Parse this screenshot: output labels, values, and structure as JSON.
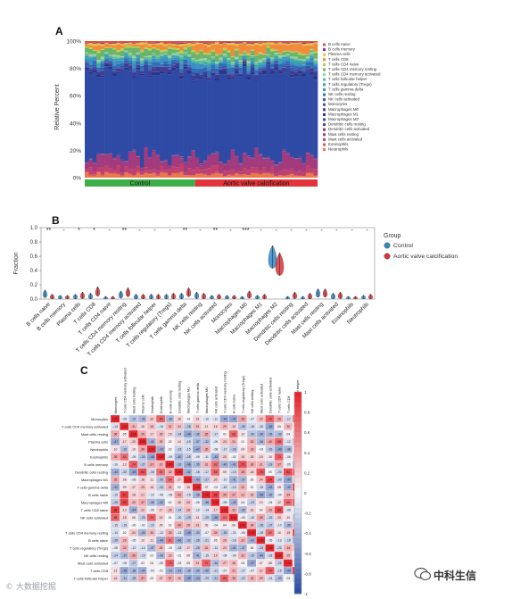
{
  "panels": {
    "a_label": "A",
    "b_label": "B",
    "c_label": "C"
  },
  "cell_types": [
    "B cells naive",
    "B cells memory",
    "Plasma cells",
    "T cells CD8",
    "T cells CD4 naive",
    "T cells CD4 memory resting",
    "T cells CD4 memory activated",
    "T cells follicular helper",
    "T cells regulatory (Tregs)",
    "T cells gamma delta",
    "NK cells resting",
    "NK cells activated",
    "Monocytes",
    "Macrophages M0",
    "Macrophages M1",
    "Macrophages M2",
    "Dendritic cells resting",
    "Dendritic cells activated",
    "Mast cells resting",
    "Mast cells activated",
    "Eosinophils",
    "Neutrophils"
  ],
  "colors": {
    "cell_types": [
      "#e2543b",
      "#8b2f8b",
      "#e8c43a",
      "#f08a3c",
      "#b7d04c",
      "#6cb36b",
      "#9ad0a4",
      "#5fbf9a",
      "#3aa6a6",
      "#3f8fc6",
      "#2c6fb8",
      "#2d5aa8",
      "#57479c",
      "#3a3f95",
      "#2b3388",
      "#2f4aa5",
      "#5a3f8f",
      "#7a3c8a",
      "#a23a7d",
      "#c0406e",
      "#d85b5b",
      "#ea7a4a"
    ],
    "control": "#2f87c8",
    "calcification": "#d8343a",
    "heat_high": "#e8242b",
    "heat_low": "#2d4fa5"
  },
  "panel_a": {
    "ylabel": "Relative Percent",
    "yticks": [
      "0%",
      "20%",
      "40%",
      "60%",
      "80%",
      "100%"
    ],
    "groups": [
      {
        "label": "Control",
        "n": 28,
        "color": "#3fae49"
      },
      {
        "label": "Aortic valve calcification",
        "n": 31,
        "color": "#e2343a"
      }
    ]
  },
  "panel_b": {
    "ylabel": "Fraction",
    "yticks": [
      "0.0",
      "0.2",
      "0.4",
      "0.6",
      "0.8",
      "1.0"
    ],
    "legend_title": "Group",
    "legend_items": [
      "Control",
      "Aortic valve calcification"
    ],
    "significance": [
      "**",
      "-",
      "*",
      "*",
      "-",
      "**",
      "-",
      "-",
      "-",
      "**",
      "-",
      "**",
      "-",
      "***",
      "-",
      "-",
      "-",
      "-",
      "-",
      "-",
      "-",
      "-"
    ],
    "categories": [
      "B cells naive",
      "B cells memory",
      "Plasma cells",
      "T cells CD8",
      "T cells CD4 naive",
      "T cells CD4 memory resting",
      "T cells CD4 memory activated",
      "T cells follicular helper",
      "T cells regulatory (Tregs)",
      "T cells gamma delta",
      "NK cells resting",
      "NK cells activated",
      "Monocytes",
      "Macrophages M0",
      "Macrophages M1",
      "Macrophages M2",
      "Dendritic cells resting",
      "Dendritic cells activated",
      "Mast cells resting",
      "Mast cells activated",
      "Eosinophils",
      "Neutrophils"
    ]
  },
  "chart_data": {
    "type": "bar",
    "xlabel": "",
    "ylabel": "Fraction",
    "ylim": [
      0,
      1
    ],
    "categories": [
      "B cells naive",
      "B cells memory",
      "Plasma cells",
      "T cells CD8",
      "T cells CD4 naive",
      "T cells CD4 memory resting",
      "T cells CD4 memory activated",
      "T cells follicular helper",
      "T cells regulatory (Tregs)",
      "T cells gamma delta",
      "NK cells resting",
      "NK cells activated",
      "Monocytes",
      "Macrophages M0",
      "Macrophages M1",
      "Macrophages M2",
      "Dendritic cells resting",
      "Dendritic cells activated",
      "Mast cells resting",
      "Mast cells activated",
      "Eosinophils",
      "Neutrophils"
    ],
    "series": [
      {
        "name": "Control",
        "values": [
          0.06,
          0.01,
          0.02,
          0.03,
          0.0,
          0.05,
          0.02,
          0.02,
          0.02,
          0.03,
          0.04,
          0.01,
          0.01,
          0.0,
          0.01,
          0.55,
          0.0,
          0.0,
          0.07,
          0.03,
          0.0,
          0.01
        ]
      },
      {
        "name": "Aortic valve calcification",
        "values": [
          0.02,
          0.01,
          0.04,
          0.09,
          0.0,
          0.08,
          0.02,
          0.02,
          0.03,
          0.08,
          0.03,
          0.02,
          0.01,
          0.05,
          0.02,
          0.45,
          0.04,
          0.03,
          0.07,
          0.04,
          0.0,
          0.02
        ]
      }
    ]
  },
  "panel_c": {
    "row_labels": [
      "Monocytes",
      "T cells CD4 memory activated",
      "Mast cells resting",
      "Plasma cells",
      "Neutrophils",
      "Eosinophils",
      "B cells memory",
      "Dendritic cells resting",
      "Macrophages M1",
      "T cells gamma delta",
      "B cells naive",
      "Macrophages M0",
      "T cells CD8 naive",
      "NK cells activated",
      "",
      "T cells CD4 memory resting",
      "B cells naive",
      "T cells regulatory (Tregs)",
      "NK cells resting",
      "Mast cells activated",
      "T cells CD8",
      "T cells follicular helper"
    ],
    "col_labels": [
      "Monocytes",
      "T cells CD4 memory activated",
      "Mast cells resting",
      "Plasma cells",
      "Neutrophils",
      "Eosinophils",
      "B cells memory",
      "Dendritic cells resting",
      "Macrophages M1",
      "T cells gamma delta",
      "Macrophages M0",
      "NK cells activated",
      "T cells CD4 memory resting",
      "B cells naive",
      "T cells regulatory (Tregs)",
      "NK cells resting",
      "Mast cells activated",
      "Dendritic cells activated",
      "T cells CD4 naive",
      "T cells CD8",
      "T cells follicular helper"
    ],
    "scale_ticks": [
      "1",
      "0.8",
      "0.6",
      "0.4",
      "0.2",
      "0",
      "-0.2",
      "-0.4",
      "-0.6",
      "-0.8",
      "-1"
    ]
  },
  "watermarks": {
    "left": "© 大数据挖掘",
    "right": "中科生信"
  }
}
